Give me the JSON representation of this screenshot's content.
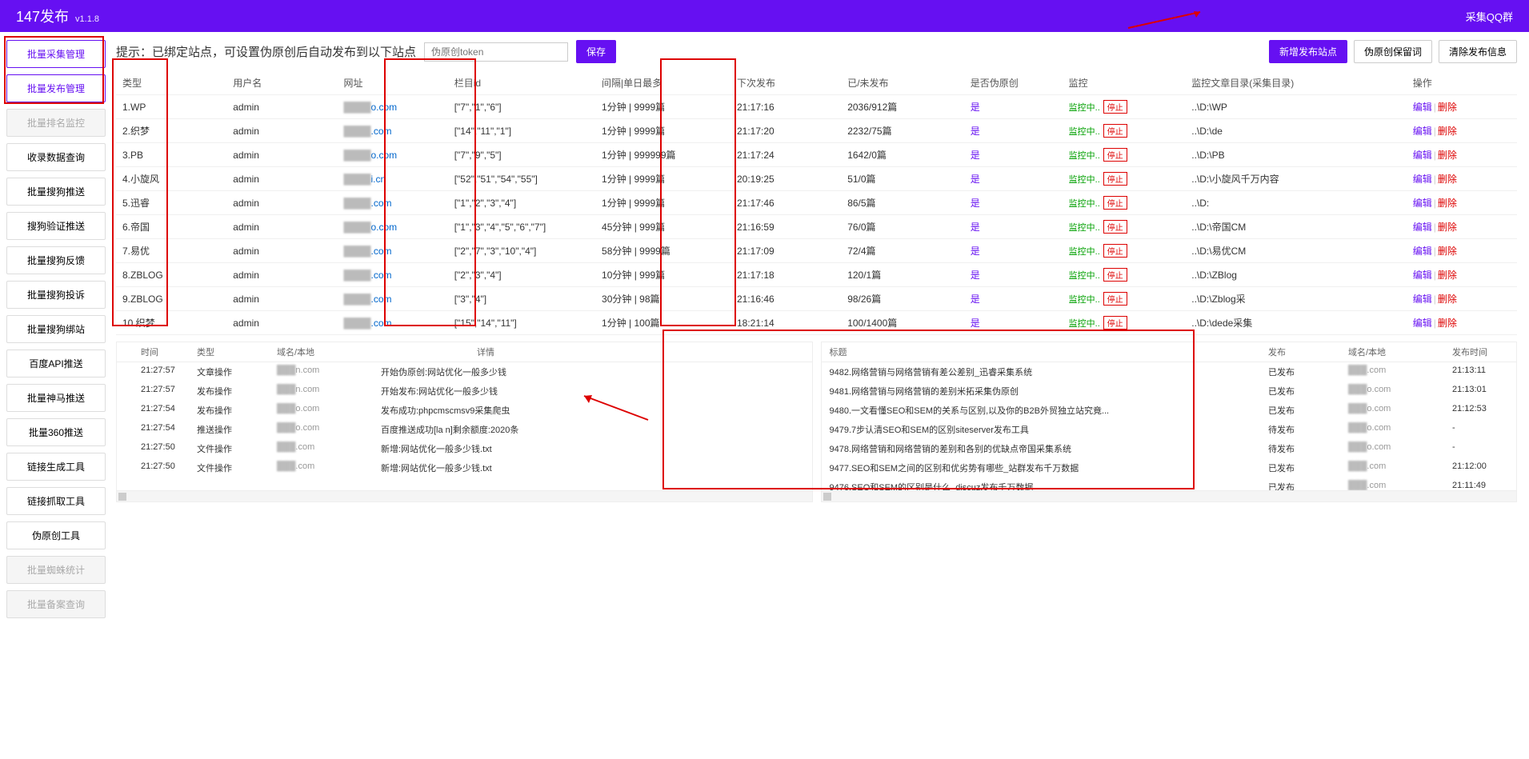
{
  "header": {
    "title": "147发布",
    "version": "v1.1.8",
    "qq": "采集QQ群"
  },
  "sidebar": [
    {
      "label": "批量采集管理",
      "state": "active"
    },
    {
      "label": "批量发布管理",
      "state": "active"
    },
    {
      "label": "批量排名监控",
      "state": "disabled"
    },
    {
      "label": "收录数据查询",
      "state": "normal"
    },
    {
      "label": "批量搜狗推送",
      "state": "normal"
    },
    {
      "label": "搜狗验证推送",
      "state": "normal"
    },
    {
      "label": "批量搜狗反馈",
      "state": "normal"
    },
    {
      "label": "批量搜狗投诉",
      "state": "normal"
    },
    {
      "label": "批量搜狗绑站",
      "state": "normal"
    },
    {
      "label": "百度API推送",
      "state": "normal"
    },
    {
      "label": "批量神马推送",
      "state": "normal"
    },
    {
      "label": "批量360推送",
      "state": "normal"
    },
    {
      "label": "链接生成工具",
      "state": "normal"
    },
    {
      "label": "链接抓取工具",
      "state": "normal"
    },
    {
      "label": "伪原创工具",
      "state": "normal"
    },
    {
      "label": "批量蜘蛛统计",
      "state": "disabled"
    },
    {
      "label": "批量备案查询",
      "state": "disabled"
    }
  ],
  "topbar": {
    "hint": "提示：已绑定站点，可设置伪原创后自动发布到以下站点",
    "token_placeholder": "伪原创token",
    "save": "保存",
    "add": "新增发布站点",
    "keep": "伪原创保留词",
    "clear": "清除发布信息"
  },
  "columns": [
    "类型",
    "用户名",
    "网址",
    "栏目id",
    "间隔|单日最多",
    "下次发布",
    "已/未发布",
    "是否伪原创",
    "监控",
    "监控文章目录(采集目录)",
    "操作"
  ],
  "monitor_label": "监控中",
  "stop_label": "停止",
  "edit_label": "编辑",
  "delete_label": "删除",
  "yes": "是",
  "rows": [
    {
      "type": "1.WP",
      "user": "admin",
      "url": "o.com",
      "col": "[\"7\",\"1\",\"6\"]",
      "interval": "1分钟 | 9999篇",
      "next": "21:17:16",
      "count": "2036/912篇",
      "dir": "..\\D:\\WP"
    },
    {
      "type": "2.织梦",
      "user": "admin",
      "url": ".com",
      "col": "[\"14\",\"11\",\"1\"]",
      "interval": "1分钟 | 9999篇",
      "next": "21:17:20",
      "count": "2232/75篇",
      "dir": "..\\D:\\de"
    },
    {
      "type": "3.PB",
      "user": "admin",
      "url": "o.com",
      "col": "[\"7\",\"9\",\"5\"]",
      "interval": "1分钟 | 999999篇",
      "next": "21:17:24",
      "count": "1642/0篇",
      "dir": "..\\D:\\PB"
    },
    {
      "type": "4.小旋风",
      "user": "admin",
      "url": "i.cn",
      "col": "[\"52\",\"51\",\"54\",\"55\"]",
      "interval": "1分钟 | 9999篇",
      "next": "20:19:25",
      "count": "51/0篇",
      "dir": "..\\D:\\小旋风千万内容"
    },
    {
      "type": "5.迅睿",
      "user": "admin",
      "url": ".com",
      "col": "[\"1\",\"2\",\"3\",\"4\"]",
      "interval": "1分钟 | 9999篇",
      "next": "21:17:46",
      "count": "86/5篇",
      "dir": "..\\D:"
    },
    {
      "type": "6.帝国",
      "user": "admin",
      "url": "o.com",
      "col": "[\"1\",\"3\",\"4\",\"5\",\"6\",\"7\"]",
      "interval": "45分钟 | 999篇",
      "next": "21:16:59",
      "count": "76/0篇",
      "dir": "..\\D:\\帝国CM"
    },
    {
      "type": "7.易优",
      "user": "admin",
      "url": ".com",
      "col": "[\"2\",\"7\",\"3\",\"10\",\"4\"]",
      "interval": "58分钟 | 9999篇",
      "next": "21:17:09",
      "count": "72/4篇",
      "dir": "..\\D:\\易优CM"
    },
    {
      "type": "8.ZBLOG",
      "user": "admin",
      "url": ".com",
      "col": "[\"2\",\"3\",\"4\"]",
      "interval": "10分钟 | 999篇",
      "next": "21:17:18",
      "count": "120/1篇",
      "dir": "..\\D:\\ZBlog"
    },
    {
      "type": "9.ZBLOG",
      "user": "admin",
      "url": ".com",
      "col": "[\"3\",\"4\"]",
      "interval": "30分钟 | 98篇",
      "next": "21:16:46",
      "count": "98/26篇",
      "dir": "..\\D:\\Zblog采"
    },
    {
      "type": "10.织梦",
      "user": "admin",
      "url": ".com",
      "col": "[\"15\",\"14\",\"11\"]",
      "interval": "1分钟 | 100篇",
      "next": "18:21:14",
      "count": "100/1400篇",
      "dir": "..\\D:\\dede采集"
    }
  ],
  "left_log": {
    "headers": [
      "时间",
      "类型",
      "域名/本地",
      "详情"
    ],
    "rows": [
      {
        "t": "21:27:57",
        "type": "文章操作",
        "d": "n.com",
        "detail": "开始伪原创:网站优化一般多少钱"
      },
      {
        "t": "21:27:57",
        "type": "发布操作",
        "d": "n.com",
        "detail": "开始发布:网站优化一般多少钱"
      },
      {
        "t": "21:27:54",
        "type": "发布操作",
        "d": "o.com",
        "detail": "发布成功:phpcmscmsv9采集爬虫"
      },
      {
        "t": "21:27:54",
        "type": "推送操作",
        "d": "o.com",
        "detail": "百度推送成功[la            n]剩余额度:2020条"
      },
      {
        "t": "21:27:50",
        "type": "文件操作",
        "d": ".com",
        "detail": "新增:网站优化一般多少钱.txt"
      },
      {
        "t": "21:27:50",
        "type": "文件操作",
        "d": ".com",
        "detail": "新增:网站优化一般多少钱.txt"
      }
    ]
  },
  "right_log": {
    "headers": [
      "标题",
      "发布",
      "域名/本地",
      "发布时间"
    ],
    "rows": [
      {
        "title": "9482.网络营销与网络营销有差公差别_迅睿采集系统",
        "pub": "已发布",
        "d": ".com",
        "t": "21:13:11"
      },
      {
        "title": "9481.网络营销与网络营销的差别米拓采集伪原创",
        "pub": "已发布",
        "d": "o.com",
        "t": "21:13:01"
      },
      {
        "title": "9480.一文看懂SEO和SEM的关系与区别,以及你的B2B外贸独立站究竟...",
        "pub": "已发布",
        "d": "o.com",
        "t": "21:12:53"
      },
      {
        "title": "9479.7步认清SEO和SEM的区别siteserver发布工具",
        "pub": "待发布",
        "d": "o.com",
        "t": "-"
      },
      {
        "title": "9478.网络营销和网络营销的差别和各别的优缺点帝国采集系统",
        "pub": "待发布",
        "d": "o.com",
        "t": "-"
      },
      {
        "title": "9477.SEO和SEM之间的区别和优劣势有哪些_站群发布千万数据",
        "pub": "已发布",
        "d": ".com",
        "t": "21:12:00"
      },
      {
        "title": "9476.SEO和SEM的区别是什么_discuz发布千万数据",
        "pub": "已发布",
        "d": ".com",
        "t": "21:11:49"
      }
    ]
  }
}
